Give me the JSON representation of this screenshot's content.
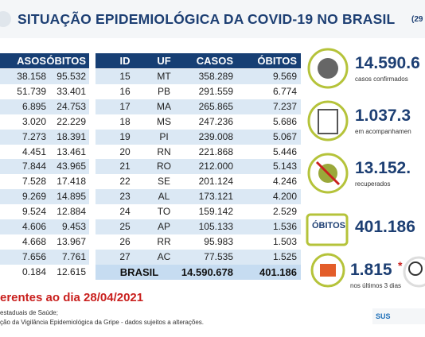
{
  "header": {
    "title": "SITUAÇÃO EPIDEMIOLÓGICA DA COVID-19 NO BRASIL",
    "date_fragment": "(29"
  },
  "left_table": {
    "columns": [
      "ASOS",
      "ÓBITOS"
    ],
    "rows": [
      [
        "38.158",
        "95.532"
      ],
      [
        "51.739",
        "33.401"
      ],
      [
        "6.895",
        "24.753"
      ],
      [
        "3.020",
        "22.229"
      ],
      [
        "7.273",
        "18.391"
      ],
      [
        "4.451",
        "13.461"
      ],
      [
        "7.844",
        "43.965"
      ],
      [
        "7.528",
        "17.418"
      ],
      [
        "9.269",
        "14.895"
      ],
      [
        "9.524",
        "12.884"
      ],
      [
        "4.606",
        "9.453"
      ],
      [
        "4.668",
        "13.967"
      ],
      [
        "7.656",
        "7.761"
      ],
      [
        "0.184",
        "12.615"
      ]
    ]
  },
  "right_table": {
    "columns": [
      "ID",
      "UF",
      "CASOS",
      "ÓBITOS"
    ],
    "rows": [
      [
        "15",
        "MT",
        "358.289",
        "9.569"
      ],
      [
        "16",
        "PB",
        "291.559",
        "6.774"
      ],
      [
        "17",
        "MA",
        "265.865",
        "7.237"
      ],
      [
        "18",
        "MS",
        "247.236",
        "5.686"
      ],
      [
        "19",
        "PI",
        "239.008",
        "5.067"
      ],
      [
        "20",
        "RN",
        "221.868",
        "5.446"
      ],
      [
        "21",
        "RO",
        "212.000",
        "5.143"
      ],
      [
        "22",
        "SE",
        "201.124",
        "4.246"
      ],
      [
        "23",
        "AL",
        "173.121",
        "4.200"
      ],
      [
        "24",
        "TO",
        "159.142",
        "2.529"
      ],
      [
        "25",
        "AP",
        "105.133",
        "1.536"
      ],
      [
        "26",
        "RR",
        "95.983",
        "1.503"
      ],
      [
        "27",
        "AC",
        "77.535",
        "1.525"
      ]
    ],
    "total": [
      "BRASIL",
      "14.590.678",
      "401.186"
    ]
  },
  "panels": [
    {
      "value": "14.590.6",
      "caption": "casos confirmados"
    },
    {
      "value": "1.037.3",
      "caption": "em acompanhamen"
    },
    {
      "value": "13.152.",
      "caption": "recuperados"
    },
    {
      "label": "ÓBITOS",
      "value": "401.186"
    },
    {
      "value": "1.815",
      "mark": "*",
      "caption": "nos últimos 3 dias"
    }
  ],
  "footer": {
    "reference": "erentes ao dia 28/04/2021",
    "source_1": "estaduais de Saúde;",
    "source_2": "ção da Vigilância Epidemiológica da Gripe - dados sujeitos a alterações.",
    "logo": "SUS"
  }
}
